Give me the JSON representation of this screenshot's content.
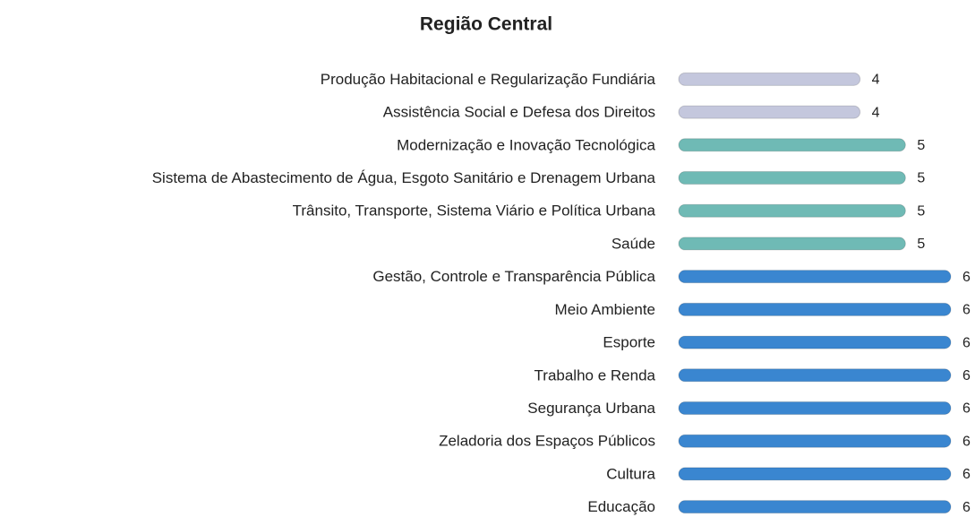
{
  "chart_data": {
    "type": "barh",
    "title": "Região Central",
    "categories": [
      "Produção Habitacional e Regularização Fundiária",
      "Assistência Social e Defesa dos Direitos",
      "Modernização e Inovação Tecnológica",
      "Sistema de Abastecimento de Água, Esgoto Sanitário e Drenagem Urbana",
      "Trânsito, Transporte, Sistema Viário e Política Urbana",
      "Saúde",
      "Gestão, Controle e Transparência Pública",
      "Meio Ambiente",
      "Esporte",
      "Trabalho e Renda",
      "Segurança Urbana",
      "Zeladoria dos Espaços Públicos",
      "Cultura",
      "Educação"
    ],
    "values": [
      4,
      4,
      5,
      5,
      5,
      5,
      6,
      6,
      6,
      6,
      6,
      6,
      6,
      6
    ],
    "colors": [
      "#c4c7dd",
      "#c4c7dd",
      "#6fbab5",
      "#6fbab5",
      "#6fbab5",
      "#6fbab5",
      "#3a86d0",
      "#3a86d0",
      "#3a86d0",
      "#3a86d0",
      "#3a86d0",
      "#3a86d0",
      "#3a86d0",
      "#3a86d0"
    ],
    "xlim": [
      0,
      6
    ]
  }
}
